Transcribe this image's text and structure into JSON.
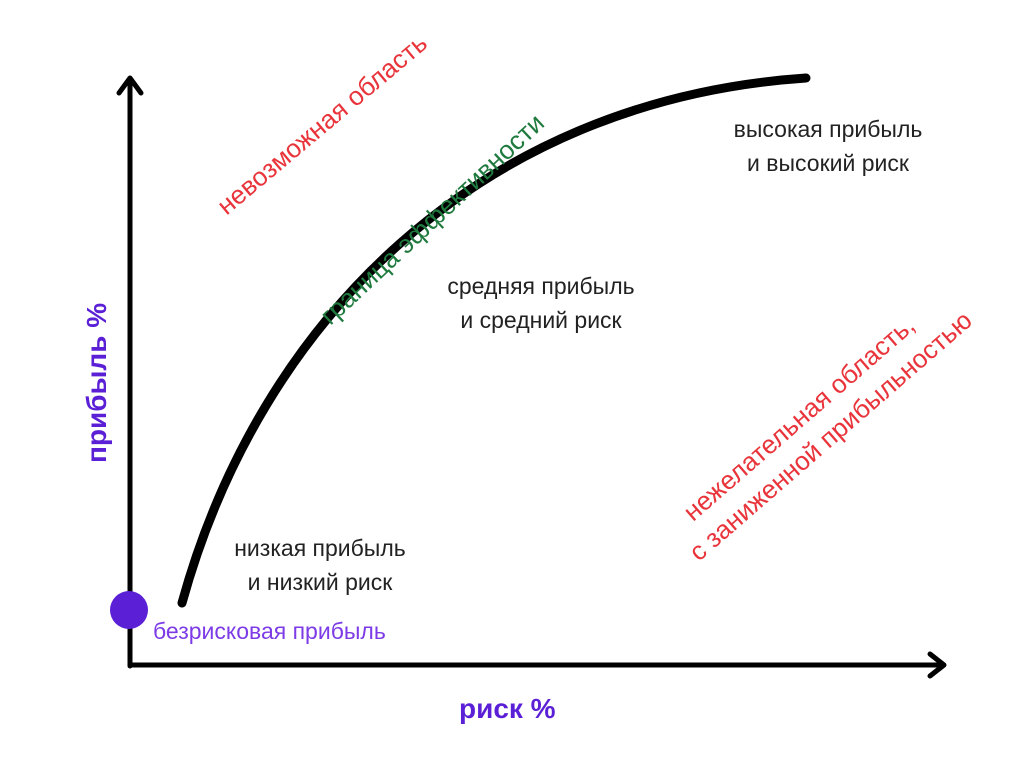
{
  "axes": {
    "x_label": "риск %",
    "y_label": "прибыль %"
  },
  "curve_label": "граница эффективности",
  "regions": {
    "impossible": "невозможная область",
    "undesirable": [
      "нежелательная область,",
      "с заниженной прибыльностью"
    ],
    "low": [
      "низкая прибыль",
      "и низкий риск"
    ],
    "medium": [
      "средняя прибыль",
      "и средний риск"
    ],
    "high": [
      "высокая прибыль",
      "и высокий риск"
    ]
  },
  "risk_free": {
    "label": "безрисковая прибыль"
  },
  "colors": {
    "axis_label": "#5b1fd6",
    "point": "#5b1fd6",
    "point_label": "#7c3be6",
    "curve": "#000000",
    "curve_label": "#1f7a3e",
    "warning": "#e8343a",
    "text": "#222222"
  }
}
